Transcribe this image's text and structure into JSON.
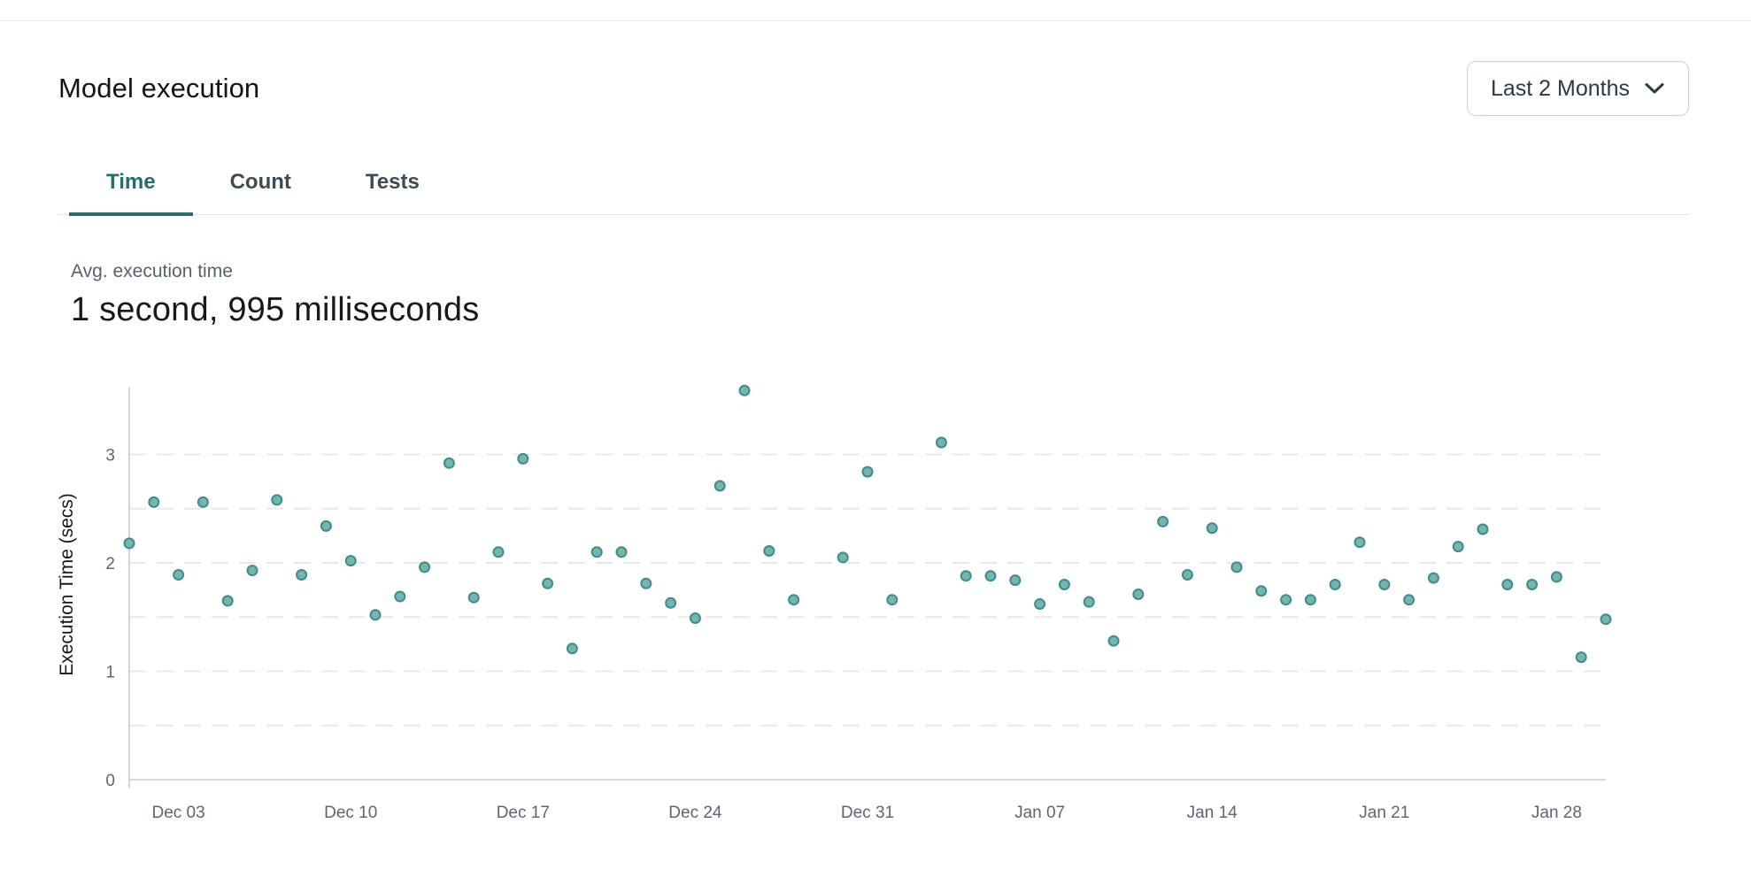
{
  "header": {
    "title": "Model execution",
    "range_label": "Last 2 Months"
  },
  "tabs": {
    "items": [
      {
        "label": "Time",
        "active": true
      },
      {
        "label": "Count",
        "active": false
      },
      {
        "label": "Tests",
        "active": false
      }
    ]
  },
  "stat": {
    "label": "Avg. execution time",
    "value": "1 second, 995 milliseconds"
  },
  "colors": {
    "accent_teal": "#276e6b",
    "dot_fill": "#72b5b1",
    "dot_stroke": "#3f8c89",
    "grid_line": "#e8e8ec",
    "axis_line": "#c9cdd4",
    "tick_text": "#5d6673",
    "axis_title_text": "#15181b"
  },
  "chart_data": {
    "type": "scatter",
    "title": "",
    "xlabel": "",
    "ylabel": "Execution Time (secs)",
    "ylim": [
      0,
      3.6
    ],
    "y_ticks": [
      0,
      1,
      2,
      3
    ],
    "grid_step": 0.5,
    "grid": "dashed horizontal lines every 0.5, solid baseline at 0",
    "legend": "none",
    "x_range_days": [
      0,
      60
    ],
    "x_tick_labels": [
      {
        "label": "Dec 03",
        "day": 2
      },
      {
        "label": "Dec 10",
        "day": 9
      },
      {
        "label": "Dec 17",
        "day": 16
      },
      {
        "label": "Dec 24",
        "day": 23
      },
      {
        "label": "Dec 31",
        "day": 30
      },
      {
        "label": "Jan 07",
        "day": 37
      },
      {
        "label": "Jan 14",
        "day": 44
      },
      {
        "label": "Jan 21",
        "day": 51
      },
      {
        "label": "Jan 28",
        "day": 58
      }
    ],
    "points": [
      {
        "date": "Dec 01",
        "day": 0,
        "value": 2.18
      },
      {
        "date": "Dec 02",
        "day": 1,
        "value": 2.56
      },
      {
        "date": "Dec 03",
        "day": 2,
        "value": 1.89
      },
      {
        "date": "Dec 04",
        "day": 3,
        "value": 2.56
      },
      {
        "date": "Dec 05",
        "day": 4,
        "value": 1.65
      },
      {
        "date": "Dec 06",
        "day": 5,
        "value": 1.93
      },
      {
        "date": "Dec 07",
        "day": 6,
        "value": 2.58
      },
      {
        "date": "Dec 08",
        "day": 7,
        "value": 1.89
      },
      {
        "date": "Dec 09",
        "day": 8,
        "value": 2.34
      },
      {
        "date": "Dec 10",
        "day": 9,
        "value": 2.02
      },
      {
        "date": "Dec 11",
        "day": 10,
        "value": 1.52
      },
      {
        "date": "Dec 12",
        "day": 11,
        "value": 1.69
      },
      {
        "date": "Dec 13",
        "day": 12,
        "value": 1.96
      },
      {
        "date": "Dec 14",
        "day": 13,
        "value": 2.92
      },
      {
        "date": "Dec 15",
        "day": 14,
        "value": 1.68
      },
      {
        "date": "Dec 16",
        "day": 15,
        "value": 2.1
      },
      {
        "date": "Dec 17",
        "day": 16,
        "value": 2.96
      },
      {
        "date": "Dec 18",
        "day": 17,
        "value": 1.81
      },
      {
        "date": "Dec 19",
        "day": 18,
        "value": 1.21
      },
      {
        "date": "Dec 20",
        "day": 19,
        "value": 2.1
      },
      {
        "date": "Dec 21",
        "day": 20,
        "value": 2.1
      },
      {
        "date": "Dec 22",
        "day": 21,
        "value": 1.81
      },
      {
        "date": "Dec 23",
        "day": 22,
        "value": 1.63
      },
      {
        "date": "Dec 24",
        "day": 23,
        "value": 1.49
      },
      {
        "date": "Dec 25",
        "day": 24,
        "value": 2.71
      },
      {
        "date": "Dec 26",
        "day": 25,
        "value": 3.59
      },
      {
        "date": "Dec 27",
        "day": 26,
        "value": 2.11
      },
      {
        "date": "Dec 28",
        "day": 27,
        "value": 1.66
      },
      {
        "date": "Dec 30",
        "day": 29,
        "value": 2.05
      },
      {
        "date": "Dec 31",
        "day": 30,
        "value": 2.84
      },
      {
        "date": "Jan 01",
        "day": 31,
        "value": 1.66
      },
      {
        "date": "Jan 03",
        "day": 33,
        "value": 3.11
      },
      {
        "date": "Jan 04",
        "day": 34,
        "value": 1.88
      },
      {
        "date": "Jan 05",
        "day": 35,
        "value": 1.88
      },
      {
        "date": "Jan 06",
        "day": 36,
        "value": 1.84
      },
      {
        "date": "Jan 07",
        "day": 37,
        "value": 1.62
      },
      {
        "date": "Jan 08",
        "day": 38,
        "value": 1.8
      },
      {
        "date": "Jan 09",
        "day": 39,
        "value": 1.64
      },
      {
        "date": "Jan 10",
        "day": 40,
        "value": 1.28
      },
      {
        "date": "Jan 11",
        "day": 41,
        "value": 1.71
      },
      {
        "date": "Jan 12",
        "day": 42,
        "value": 2.38
      },
      {
        "date": "Jan 13",
        "day": 43,
        "value": 1.89
      },
      {
        "date": "Jan 14",
        "day": 44,
        "value": 2.32
      },
      {
        "date": "Jan 15",
        "day": 45,
        "value": 1.96
      },
      {
        "date": "Jan 16",
        "day": 46,
        "value": 1.74
      },
      {
        "date": "Jan 17",
        "day": 47,
        "value": 1.66
      },
      {
        "date": "Jan 18",
        "day": 48,
        "value": 1.66
      },
      {
        "date": "Jan 19",
        "day": 49,
        "value": 1.8
      },
      {
        "date": "Jan 20",
        "day": 50,
        "value": 2.19
      },
      {
        "date": "Jan 21",
        "day": 51,
        "value": 1.8
      },
      {
        "date": "Jan 22",
        "day": 52,
        "value": 1.66
      },
      {
        "date": "Jan 23",
        "day": 53,
        "value": 1.86
      },
      {
        "date": "Jan 24",
        "day": 54,
        "value": 2.15
      },
      {
        "date": "Jan 25",
        "day": 55,
        "value": 2.31
      },
      {
        "date": "Jan 26",
        "day": 56,
        "value": 1.8
      },
      {
        "date": "Jan 27",
        "day": 57,
        "value": 1.8
      },
      {
        "date": "Jan 28",
        "day": 58,
        "value": 1.87
      },
      {
        "date": "Jan 29",
        "day": 59,
        "value": 1.13
      },
      {
        "date": "Jan 30",
        "day": 60,
        "value": 1.48
      }
    ]
  }
}
